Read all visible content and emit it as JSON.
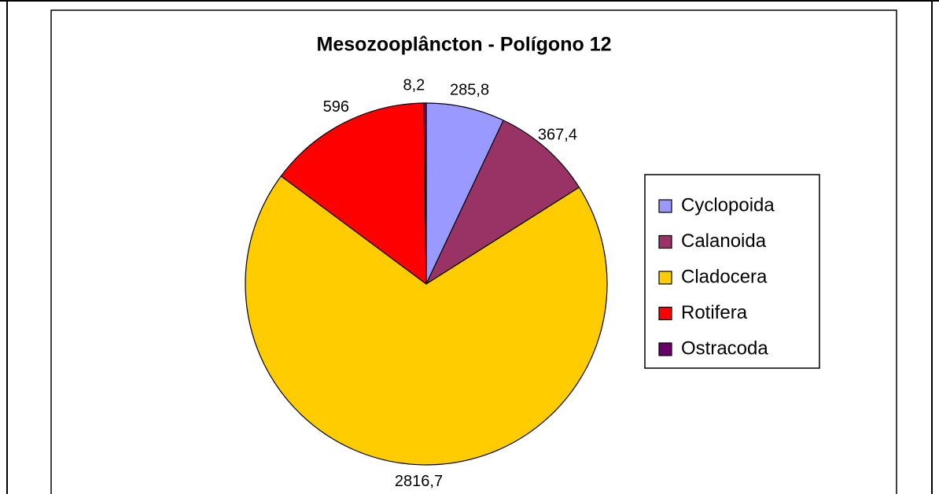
{
  "chart_data": {
    "type": "pie",
    "title": "Mesozooplâncton - Polígono 12",
    "categories": [
      "Cyclopoida",
      "Calanoida",
      "Cladocera",
      "Rotifera",
      "Ostracoda"
    ],
    "values": [
      285.8,
      367.4,
      2816.7,
      596,
      8.2
    ],
    "value_labels": [
      "285,8",
      "367,4",
      "2816,7",
      "596",
      "8,2"
    ],
    "colors": [
      "#9999ff",
      "#993366",
      "#ffcc00",
      "#ff0000",
      "#660066"
    ],
    "legend": "right"
  }
}
